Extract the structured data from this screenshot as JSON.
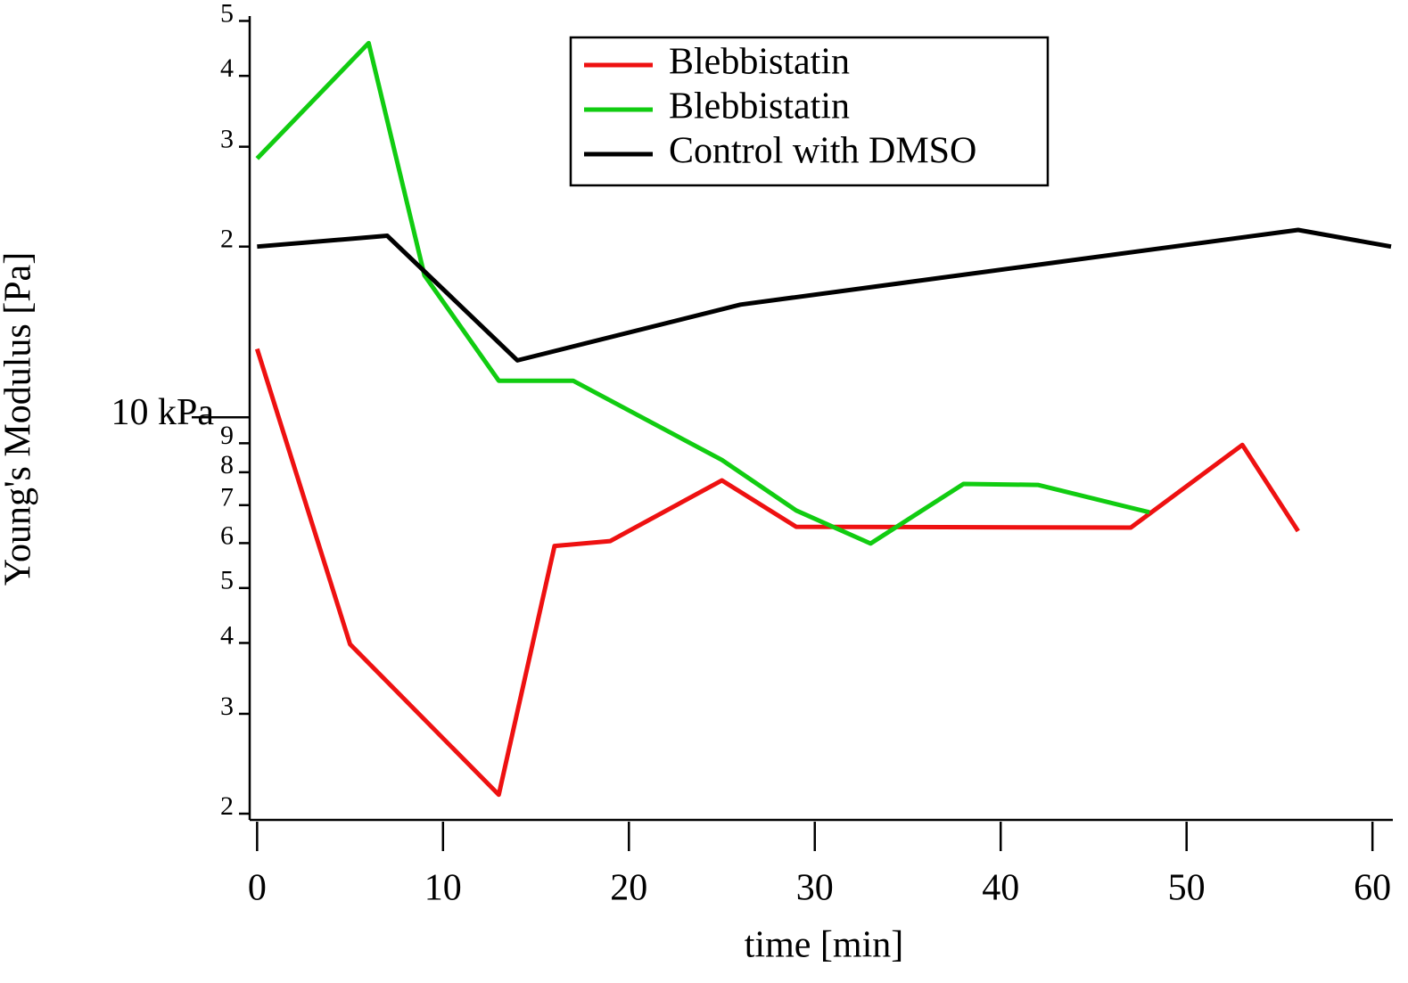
{
  "chart_data": {
    "type": "line",
    "xlabel": "time [min]",
    "ylabel": "Young's Modulus [Pa]",
    "xlim": [
      -0.4,
      61
    ],
    "xticks": [
      0,
      10,
      20,
      30,
      40,
      50,
      60
    ],
    "ylim": [
      1.95,
      51
    ],
    "yscale": "log",
    "yticks": [
      2,
      3,
      4,
      5,
      6,
      7,
      8,
      9,
      {
        "value": 10,
        "label": "10 kPa"
      },
      {
        "value": 20,
        "label": "2"
      },
      {
        "value": 30,
        "label": "3"
      },
      {
        "value": 40,
        "label": "4"
      },
      {
        "value": 50,
        "label": "5"
      }
    ],
    "legend": "upper center",
    "series": [
      {
        "name": "Blebbistatin",
        "color": "#ee1111",
        "x": [
          0,
          5,
          13,
          16,
          19,
          25,
          29,
          47,
          53,
          56
        ],
        "values": [
          13.2,
          3.98,
          2.16,
          5.93,
          6.05,
          7.74,
          6.41,
          6.39,
          8.94,
          6.3
        ]
      },
      {
        "name": "Blebbistatin",
        "color": "#11cc11",
        "x": [
          0,
          6,
          9,
          13,
          17,
          25,
          29,
          33,
          38,
          42,
          48
        ],
        "values": [
          28.6,
          45.7,
          17.8,
          11.6,
          11.6,
          8.41,
          6.85,
          5.99,
          7.63,
          7.6,
          6.8
        ]
      },
      {
        "name": "Control with DMSO",
        "color": "#000000",
        "x": [
          0,
          7,
          14,
          26,
          56,
          61
        ],
        "values": [
          20,
          20.9,
          12.6,
          15.8,
          21.4,
          20
        ]
      }
    ]
  }
}
